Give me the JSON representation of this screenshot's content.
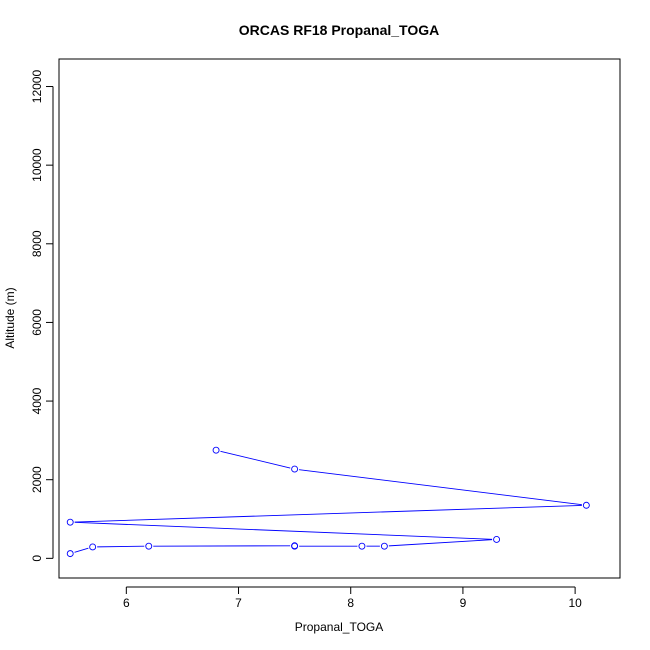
{
  "chart_data": {
    "type": "line",
    "title": "ORCAS RF18 Propanal_TOGA",
    "xlabel": "Propanal_TOGA",
    "ylabel": "Altitude (m)",
    "xlim": [
      5.4,
      10.4
    ],
    "ylim": [
      -500,
      12700
    ],
    "xticks": [
      6,
      7,
      8,
      9,
      10
    ],
    "yticks": [
      0,
      2000,
      4000,
      6000,
      8000,
      10000,
      12000
    ],
    "grid": false,
    "colors": {
      "series": "#0000ff"
    },
    "series": [
      {
        "markers": "open-circle",
        "points": [
          {
            "x": 6.8,
            "y": 2750
          },
          {
            "x": 7.5,
            "y": 2270
          },
          {
            "x": 10.1,
            "y": 1350
          },
          {
            "x": 5.5,
            "y": 920
          },
          {
            "x": 9.3,
            "y": 480
          },
          {
            "x": 8.3,
            "y": 310
          },
          {
            "x": 8.1,
            "y": 310
          },
          {
            "x": 7.5,
            "y": 310
          },
          {
            "x": 7.5,
            "y": 320
          },
          {
            "x": 6.2,
            "y": 310
          },
          {
            "x": 5.7,
            "y": 290
          },
          {
            "x": 5.5,
            "y": 120
          }
        ]
      }
    ]
  }
}
